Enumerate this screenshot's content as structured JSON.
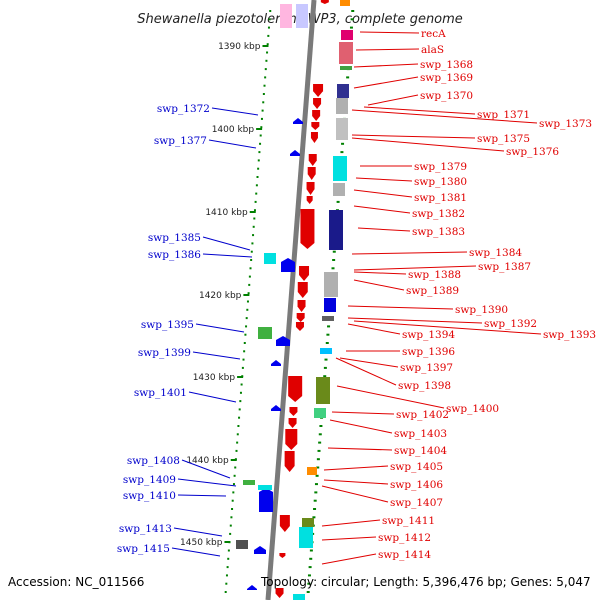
{
  "title": "Shewanella piezotolerans WP3, complete genome",
  "footer": {
    "accession": "Accession: NC_011566",
    "topology": "Topology: circular; Length: 5,396,476 bp; Genes: 5,047"
  },
  "colors": {
    "backbone": "#808080",
    "forward_gene": "#e00000",
    "reverse_gene": "#0000ee",
    "label_right": "#e00000",
    "label_left": "#0000cc",
    "tick": "#008000"
  },
  "kbp_ticks": [
    "1390 kbp",
    "1400 kbp",
    "1410 kbp",
    "1420 kbp",
    "1430 kbp",
    "1440 kbp",
    "1450 kbp"
  ],
  "right_labels": [
    "recA",
    "alaS",
    "swp_1368",
    "swp_1369",
    "swp_1370",
    "swp_1371",
    "swp_1373",
    "swp_1375",
    "swp_1376",
    "swp_1379",
    "swp_1380",
    "swp_1381",
    "swp_1382",
    "swp_1383",
    "swp_1384",
    "swp_1387",
    "swp_1388",
    "swp_1389",
    "swp_1390",
    "swp_1392",
    "swp_1393",
    "swp_1394",
    "swp_1396",
    "swp_1397",
    "swp_1398",
    "swp_1400",
    "swp_1402",
    "swp_1403",
    "swp_1404",
    "swp_1405",
    "swp_1406",
    "swp_1407",
    "swp_1411",
    "swp_1412",
    "swp_1414"
  ],
  "left_labels": [
    "swp_1372",
    "swp_1377",
    "swp_1385",
    "swp_1386",
    "swp_1395",
    "swp_1399",
    "swp_1401",
    "swp_1408",
    "swp_1409",
    "swp_1410",
    "swp_1413",
    "swp_1415"
  ]
}
